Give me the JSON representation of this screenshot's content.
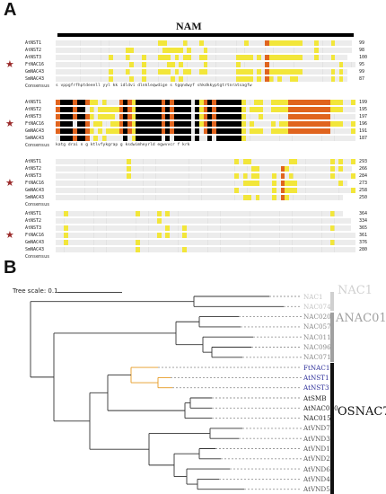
{
  "panels": {
    "a": "A",
    "b": "B"
  },
  "alignment": {
    "domain_label": "NAM",
    "blocks": [
      {
        "rows": [
          {
            "name": "AtNST1",
            "seq": "..MSEDSWIIHEKNVPSGFRFHPTEEELIQYYLSKKIEDIDIMHGVVVPLGDLNKLEPWDIPGEAYFGNRRK",
            "end": 99
          },
          {
            "name": "AtNST2",
            "seq": "......MNISVNGQSQVPPGFRFHPTEEELLQYYLRKKVNSIEIDLDVIRDVDLNKLEPWDIQEMCKIGTTP",
            "end": 98
          },
          {
            "name": "AtNST3",
            "seq": "MADNKVNLSINGQSKVPPGFRFHPTEEELLHYYLRKKVNSQKIDLDVIREVDLNKLEPWDIQEECRIGSTP",
            "end": 100
          },
          {
            "name": "FtNAC16",
            "seq": "......MDDLSVNGQSQLPPGFRFHPTEEELLQFYLKKKVSSFQLNLDVIADVDLNKLEPWDIQEKCKLGSGP",
            "end": 95
          },
          {
            "name": "GmNAC43",
            "seq": "....MSIGSVNGQSQVPPGFRFHPTEEELLHYYLRKKVSYEAIDLDVIREVDLNKLEPWDLKEKCRIGSGP",
            "end": 99
          },
          {
            "name": "SmNAC43",
            "seq": ".......MDQSLNSGTQLPPGFRFHPTDEELVMHYLCRKGAVFQLDVIAELDLYKFDPWELPNKAQFGEGE",
            "end": 87
          }
        ],
        "consensus": "s  vppgfrfhptdeeell yyl kk   idldvi   dlnkleqwdige s   tgqndwyf  shkdkkyptgtrtnratsagfw",
        "star_rows": [
          3
        ]
      },
      {
        "rows": [
          {
            "name": "AtNST1",
            "seq": "KATGKDRAIHLNNKIIGMRKTLVFYKGRAPHGQKSDWIMHEYRLETDENGTPQEEGWVVCRVFKKRLAAVR",
            "end": 199
          },
          {
            "name": "AtNST2",
            "seq": "KATGKDRVISSNSTTIGMRKTLVFYKGRAPHGSKSDWIMHEYRLETSENGVPQEEGWVVCRVFKKRLATSK",
            "end": 195
          },
          {
            "name": "AtNST3",
            "seq": "KATGKDRAIFSNSTSIGMRKTLVFYKGRAPHGQKSDWIMHEYRLDDNNNMSEDSVGWVVCRVFKKKHSNRS",
            "end": 197
          },
          {
            "name": "FtNAC16",
            "seq": "KATGRDRAVHSGETTIGMKKTLVFYKGRAPHGEKSDWIMHEYRLDESNDSTPREEGWVVCRVFKKRLASVR",
            "end": 196
          },
          {
            "name": "GmNAC43",
            "seq": "KATGKDRAIFSRSTTIGMKKTLVFYKGRAPHGEKTDWIMHEYRLDDSENEVPQEEGWVVCRVFKKKKLQSR",
            "end": 191
          },
          {
            "name": "SmNAC43",
            "seq": "EATGKDRAMHTNTNSVGLKKTLVFYRGKAPHGRKTNWVMHEYRLENPQKEEDSLWRLYRLYTSSNCQMMLL",
            "end": 187
          }
        ],
        "consensus": "katg drai  n   g  ktlvfykgrap g ksdwimheyrld        egwvvcr f krk",
        "star_rows": [
          3
        ]
      },
      {
        "rows": [
          {
            "name": "AtNST1",
            "seq": "ETPNTTSSQIPMNSPSSDDQLLEQLLDMQNCSIDQLLHSFSMEQASSSPKSMPMPTSMSDQEHYVPSLMDLQ",
            "end": 293
          },
          {
            "name": "AtNST2",
            "seq": "PHESTQLEGSMPVLELGDEEPLQQQIMFNNSSEYAMQQTMEVVEGMDLSSRPDLSSMSDQVHYHPSSLMKL",
            "end": 266
          },
          {
            "name": "AtNST3",
            "seq": "TTDESHSGTPSNYGSHLDNTSDQNLIEDFSPQHSHQISSHQQMQNSLLSVPSSTSNSNLSNHHHHSSMLQIQ",
            "end": 284
          },
          {
            "name": "FtNAC16",
            "seq": "IRSHKQPSEMIDQSNLHHLLQNMMQLDHSFAHQSSGIPLDHRFSQSSLSMPSSSSSSMHHSDPIKLENML",
            "end": 273
          },
          {
            "name": "GmNAC43",
            "seq": "GESAMDEFSQMLQDSSDLMVTTDVGSSSVEDDHMMQEGNSHLHQHHHHHLIGSSSSSMLQVPSMMDHDHHSQ",
            "end": 258
          },
          {
            "name": "SmNAC43",
            "seq": "NNMLS.........ACDSNSLSFEYMEEMMVGSPTEHLQSTAANSSSHSAAHSHSSGRSPHEEVSTTIQ",
            "end": 250
          }
        ],
        "consensus": "",
        "star_rows": [
          3
        ]
      },
      {
        "rows": [
          {
            "name": "AtNST1",
            "seq": "NESHVGRMDMNILAESVSPSSSLNRASRSDLYQEFQPETLMMTQTTTSSSPSGSSAQSQVDGMQWSNN",
            "end": 364
          },
          {
            "name": "AtNST2",
            "seq": "NETSQ...........SFSNGLSNRSGCNFNLHGQQPIVHPPLSIGADEGVKIKPDGASFAHFRETCHIG",
            "end": 334
          },
          {
            "name": "AtNST3",
            "seq": "QSSQNLGFNFGFNSDMNSDLLLKHSASYRMPSSFAHVLQNGGDIFDIRGNLYPNFEGDFGASCLDSNSSS",
            "end": 365
          },
          {
            "name": "FtNAC16",
            "seq": "DISNSKIWTHNQSVPDTTMANEWTRRSAPQPQQNPLVNFSTQPSTDNNNQGQIDMHSTLMSAQMQNQEGSM",
            "end": 361
          },
          {
            "name": "GmNAC43",
            "seq": "ALSRLVASQDSGSSSWQTGSSSQLHNHQRQQSSHPWNHSNNAGGSESNSSGLLSRRPDMSSNMIWSSVQLM",
            "end": 376
          },
          {
            "name": "SmNAC43",
            "seq": "LSVIN....SEEHAQSPPSSTRTPLGPRANPAAQISLHNSLAAFMERFHGYIAAMESRNDFHCNHIDDTTV",
            "end": 280
          }
        ],
        "consensus": "",
        "star_rows": [
          3
        ]
      }
    ],
    "consensus_label": "Consensus"
  },
  "tree": {
    "scale_label": "Tree scale: 0.1",
    "leaves": [
      {
        "label": "NAC1",
        "color": "#c4c4c4"
      },
      {
        "label": "NAC074",
        "color": "#c4c4c4"
      },
      {
        "label": "NAC020",
        "color": "#8a8a8a"
      },
      {
        "label": "NAC057",
        "color": "#8a8a8a"
      },
      {
        "label": "NAC011",
        "color": "#8a8a8a"
      },
      {
        "label": "NAC096",
        "color": "#8a8a8a"
      },
      {
        "label": "NAC071",
        "color": "#8a8a8a"
      },
      {
        "label": "FtNAC16",
        "color": "#2d2f9a"
      },
      {
        "label": "AtNST1",
        "color": "#2d2f9a"
      },
      {
        "label": "AtNST3",
        "color": "#2d2f9a"
      },
      {
        "label": "AtSMB",
        "color": "#222222"
      },
      {
        "label": "AtNAC070",
        "color": "#222222"
      },
      {
        "label": "NAC015",
        "color": "#222222"
      },
      {
        "label": "AtVND7",
        "color": "#555555"
      },
      {
        "label": "AtVND3",
        "color": "#555555"
      },
      {
        "label": "AtVND1",
        "color": "#555555"
      },
      {
        "label": "AtVND2",
        "color": "#555555"
      },
      {
        "label": "AtVND6",
        "color": "#555555"
      },
      {
        "label": "AtVND4",
        "color": "#555555"
      },
      {
        "label": "AtVND5",
        "color": "#555555"
      }
    ],
    "clades": [
      {
        "label": "NAC1",
        "color": "#d0d0d0"
      },
      {
        "label": "ANAC011",
        "color": "#a0a0a0"
      },
      {
        "label": "OSNAC7",
        "color": "#111111"
      }
    ],
    "highlight_color": "#e69a22"
  }
}
